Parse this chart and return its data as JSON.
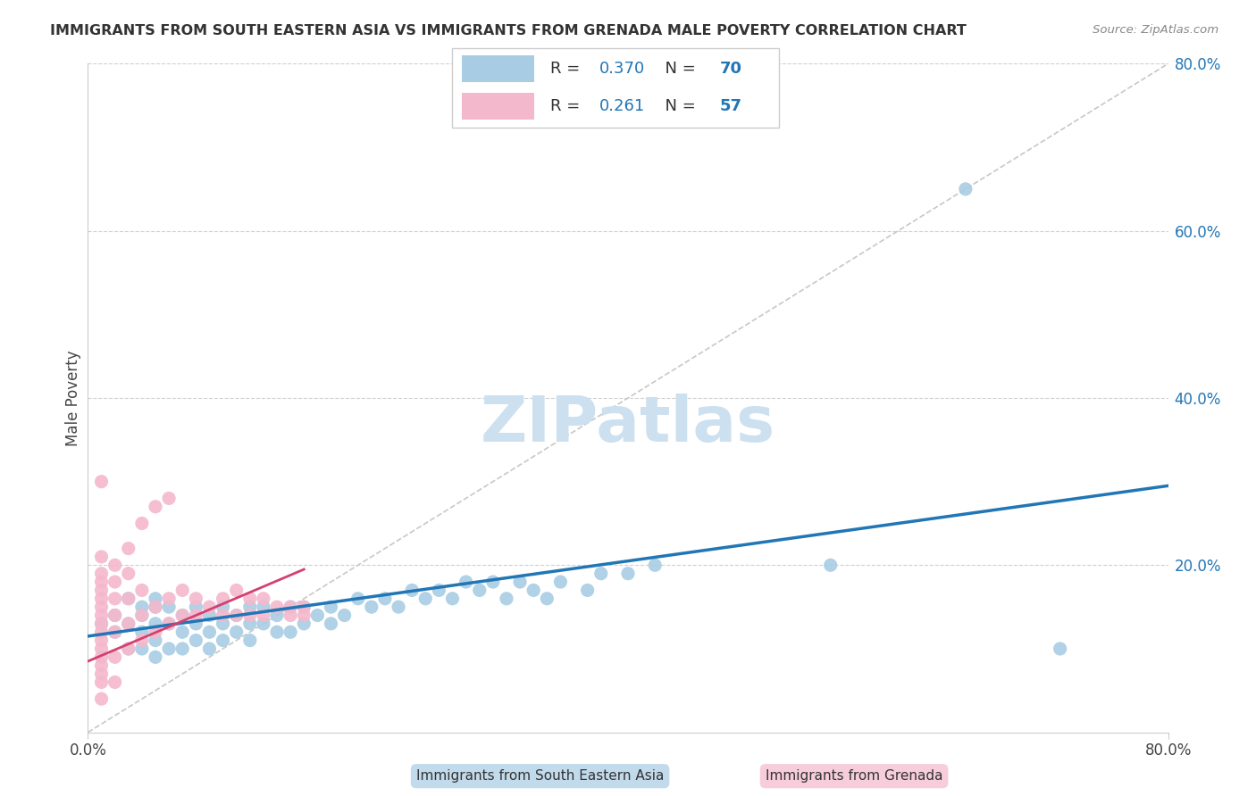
{
  "title": "IMMIGRANTS FROM SOUTH EASTERN ASIA VS IMMIGRANTS FROM GRENADA MALE POVERTY CORRELATION CHART",
  "source": "Source: ZipAtlas.com",
  "ylabel": "Male Poverty",
  "legend_label1": "Immigrants from South Eastern Asia",
  "legend_label2": "Immigrants from Grenada",
  "R1": 0.37,
  "N1": 70,
  "R2": 0.261,
  "N2": 57,
  "color1": "#a8cce4",
  "color2": "#f4b8cc",
  "color1_line": "#2176b5",
  "color2_line": "#d44070",
  "color_diag": "#c8c8c8",
  "watermark": "ZIPatlas",
  "xlim": [
    0.0,
    0.8
  ],
  "ylim": [
    0.0,
    0.8
  ],
  "blue_scatter_x": [
    0.01,
    0.02,
    0.02,
    0.03,
    0.03,
    0.03,
    0.04,
    0.04,
    0.04,
    0.04,
    0.05,
    0.05,
    0.05,
    0.05,
    0.05,
    0.06,
    0.06,
    0.06,
    0.07,
    0.07,
    0.07,
    0.08,
    0.08,
    0.08,
    0.09,
    0.09,
    0.09,
    0.1,
    0.1,
    0.1,
    0.11,
    0.11,
    0.12,
    0.12,
    0.12,
    0.13,
    0.13,
    0.14,
    0.14,
    0.15,
    0.15,
    0.16,
    0.16,
    0.17,
    0.18,
    0.18,
    0.19,
    0.2,
    0.21,
    0.22,
    0.23,
    0.24,
    0.25,
    0.26,
    0.27,
    0.28,
    0.29,
    0.3,
    0.31,
    0.32,
    0.33,
    0.34,
    0.35,
    0.37,
    0.38,
    0.4,
    0.42,
    0.55,
    0.65,
    0.72
  ],
  "blue_scatter_y": [
    0.13,
    0.12,
    0.14,
    0.1,
    0.13,
    0.16,
    0.1,
    0.12,
    0.14,
    0.15,
    0.09,
    0.11,
    0.13,
    0.15,
    0.16,
    0.1,
    0.13,
    0.15,
    0.1,
    0.12,
    0.14,
    0.11,
    0.13,
    0.15,
    0.1,
    0.12,
    0.14,
    0.11,
    0.13,
    0.15,
    0.12,
    0.14,
    0.11,
    0.13,
    0.15,
    0.13,
    0.15,
    0.12,
    0.14,
    0.12,
    0.15,
    0.13,
    0.15,
    0.14,
    0.13,
    0.15,
    0.14,
    0.16,
    0.15,
    0.16,
    0.15,
    0.17,
    0.16,
    0.17,
    0.16,
    0.18,
    0.17,
    0.18,
    0.16,
    0.18,
    0.17,
    0.16,
    0.18,
    0.17,
    0.19,
    0.19,
    0.2,
    0.2,
    0.65,
    0.1
  ],
  "pink_scatter_x": [
    0.01,
    0.01,
    0.01,
    0.01,
    0.01,
    0.01,
    0.01,
    0.01,
    0.01,
    0.01,
    0.01,
    0.01,
    0.01,
    0.01,
    0.01,
    0.01,
    0.01,
    0.02,
    0.02,
    0.02,
    0.02,
    0.02,
    0.02,
    0.02,
    0.03,
    0.03,
    0.03,
    0.03,
    0.03,
    0.04,
    0.04,
    0.04,
    0.04,
    0.05,
    0.05,
    0.05,
    0.06,
    0.06,
    0.06,
    0.07,
    0.07,
    0.08,
    0.08,
    0.09,
    0.1,
    0.1,
    0.11,
    0.11,
    0.12,
    0.12,
    0.13,
    0.13,
    0.14,
    0.15,
    0.15,
    0.16,
    0.16
  ],
  "pink_scatter_y": [
    0.04,
    0.06,
    0.07,
    0.08,
    0.09,
    0.1,
    0.11,
    0.12,
    0.13,
    0.14,
    0.15,
    0.16,
    0.17,
    0.18,
    0.19,
    0.21,
    0.3,
    0.06,
    0.09,
    0.12,
    0.14,
    0.16,
    0.18,
    0.2,
    0.1,
    0.13,
    0.16,
    0.19,
    0.22,
    0.11,
    0.14,
    0.17,
    0.25,
    0.12,
    0.15,
    0.27,
    0.13,
    0.16,
    0.28,
    0.14,
    0.17,
    0.14,
    0.16,
    0.15,
    0.14,
    0.16,
    0.14,
    0.17,
    0.14,
    0.16,
    0.14,
    0.16,
    0.15,
    0.14,
    0.15,
    0.14,
    0.15
  ],
  "blue_line_x": [
    0.0,
    0.8
  ],
  "blue_line_y": [
    0.115,
    0.295
  ],
  "pink_line_x": [
    0.0,
    0.16
  ],
  "pink_line_y": [
    0.085,
    0.195
  ],
  "diag_line_x": [
    0.0,
    0.8
  ],
  "diag_line_y": [
    0.0,
    0.8
  ],
  "right_ytick_vals": [
    0.2,
    0.4,
    0.6,
    0.8
  ],
  "right_ytick_labels": [
    "20.0%",
    "40.0%",
    "60.0%",
    "80.0%"
  ]
}
